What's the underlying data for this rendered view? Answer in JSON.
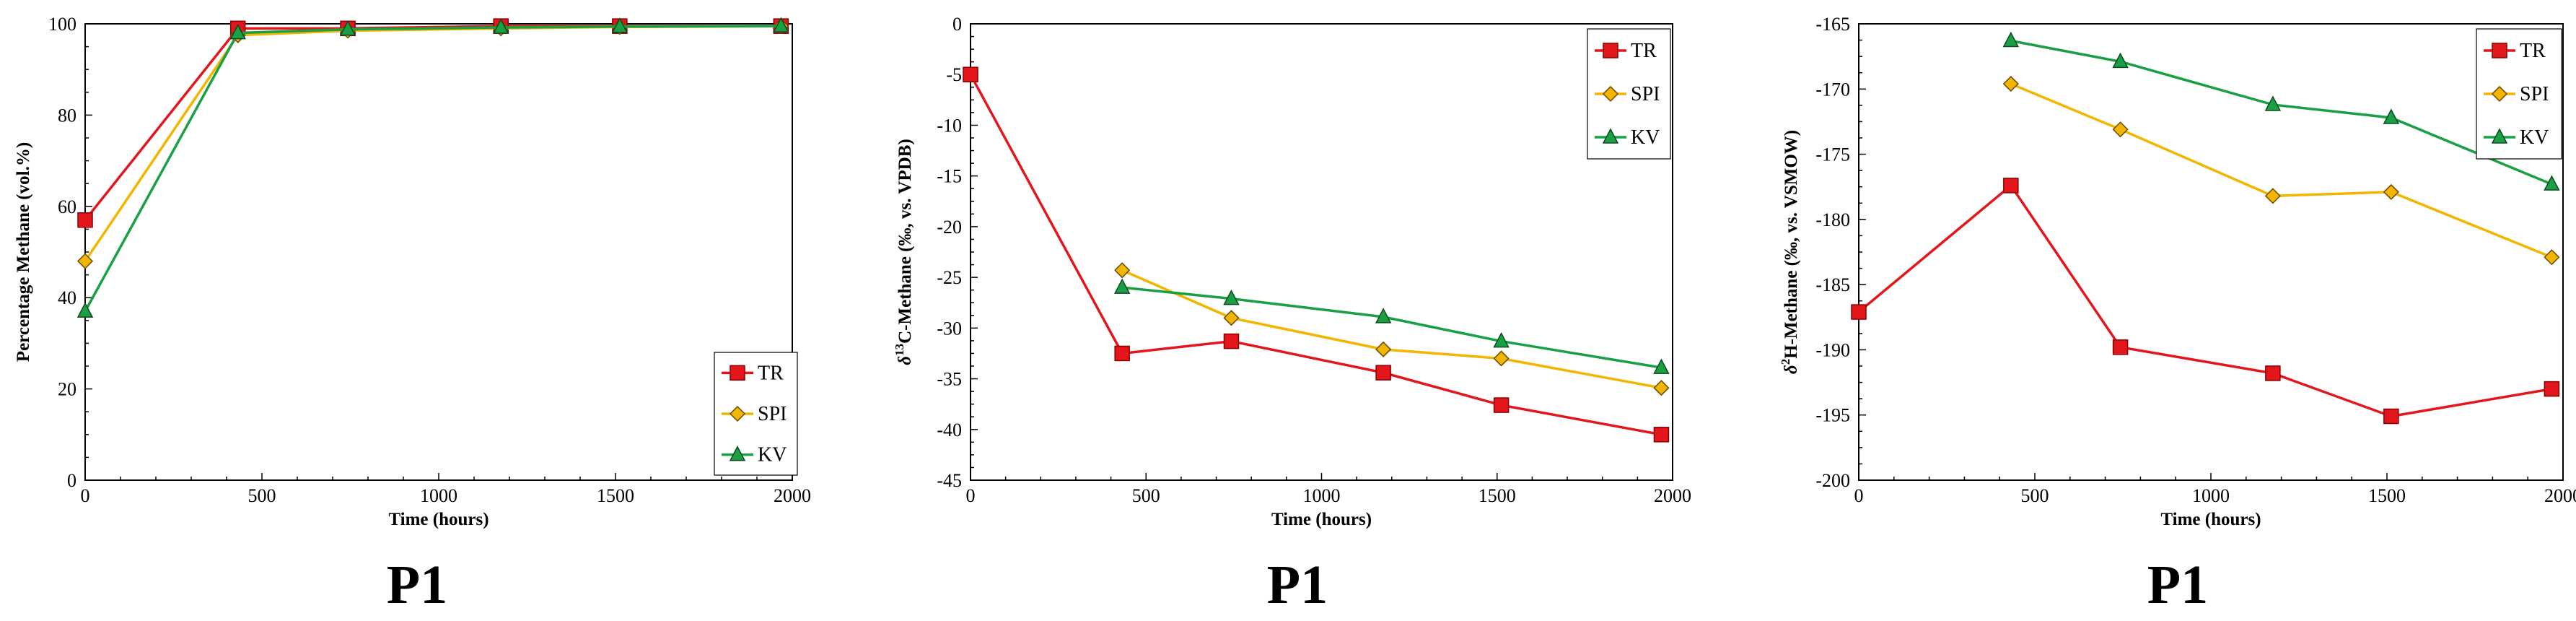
{
  "colors": {
    "TR": "#e3161b",
    "SPI": "#f2b500",
    "KV": "#1aa044"
  },
  "chart_data": [
    {
      "type": "line",
      "title": "P1",
      "xlabel": "Time (hours)",
      "ylabel": "Percentage Methane (vol.%)",
      "xlim": [
        0,
        2000
      ],
      "ylim": [
        0,
        100
      ],
      "xticks": [
        0,
        500,
        1000,
        1500,
        2000
      ],
      "yticks": [
        0,
        20,
        40,
        60,
        80,
        100
      ],
      "legend": "bottom-right",
      "series": [
        {
          "name": "TR",
          "marker": "square",
          "x": [
            0,
            432,
            743,
            1176,
            1512,
            1968
          ],
          "y": [
            57,
            99,
            99,
            99.5,
            99.5,
            99.5
          ]
        },
        {
          "name": "SPI",
          "marker": "diamond",
          "x": [
            0,
            432,
            743,
            1176,
            1512,
            1968
          ],
          "y": [
            48,
            97.5,
            98.5,
            99,
            99.3,
            99.5
          ]
        },
        {
          "name": "KV",
          "marker": "triangle",
          "x": [
            0,
            432,
            743,
            1176,
            1512,
            1968
          ],
          "y": [
            37,
            98,
            98.8,
            99.2,
            99.4,
            99.5
          ]
        }
      ]
    },
    {
      "type": "line",
      "title": "P1",
      "xlabel": "Time (hours)",
      "ylabel": "δ13C-Methane (‰, vs. VPDB)",
      "ylabel_parts": [
        "δ",
        "13",
        "C-Methane (‰, vs. VPDB)"
      ],
      "xlim": [
        0,
        2000
      ],
      "ylim": [
        -45,
        0
      ],
      "xticks": [
        0,
        500,
        1000,
        1500,
        2000
      ],
      "yticks": [
        0,
        -5,
        -10,
        -15,
        -20,
        -25,
        -30,
        -35,
        -40,
        -45
      ],
      "legend": "top-right",
      "series": [
        {
          "name": "TR",
          "marker": "square",
          "x": [
            0,
            432,
            743,
            1176,
            1512,
            1968
          ],
          "y": [
            -5.0,
            -32.5,
            -31.3,
            -34.4,
            -37.6,
            -40.5
          ]
        },
        {
          "name": "SPI",
          "marker": "diamond",
          "x": [
            432,
            743,
            1176,
            1512,
            1968
          ],
          "y": [
            -24.3,
            -29.0,
            -32.1,
            -33.0,
            -35.9
          ]
        },
        {
          "name": "KV",
          "marker": "triangle",
          "x": [
            432,
            743,
            1176,
            1512,
            1968
          ],
          "y": [
            -26.0,
            -27.1,
            -28.9,
            -31.3,
            -33.9
          ]
        }
      ]
    },
    {
      "type": "line",
      "title": "P1",
      "xlabel": "Time (hours)",
      "ylabel": "δ2H-Methane (‰, vs. VSMOW)",
      "ylabel_parts": [
        "δ",
        "2",
        "H-Methane (‰, vs. VSMOW)"
      ],
      "xlim": [
        0,
        2000
      ],
      "ylim": [
        -200,
        -165
      ],
      "xticks": [
        0,
        500,
        1000,
        1500,
        2000
      ],
      "yticks": [
        -165,
        -170,
        -175,
        -180,
        -185,
        -190,
        -195,
        -200
      ],
      "legend": "top-right",
      "series": [
        {
          "name": "TR",
          "marker": "square",
          "x": [
            0,
            432,
            743,
            1176,
            1512,
            1968
          ],
          "y": [
            -187.1,
            -177.4,
            -189.8,
            -191.8,
            -195.1,
            -193.0
          ]
        },
        {
          "name": "SPI",
          "marker": "diamond",
          "x": [
            432,
            743,
            1176,
            1512,
            1968
          ],
          "y": [
            -169.6,
            -173.1,
            -178.2,
            -177.9,
            -182.9
          ]
        },
        {
          "name": "KV",
          "marker": "triangle",
          "x": [
            432,
            743,
            1176,
            1512,
            1968
          ],
          "y": [
            -166.3,
            -167.9,
            -171.2,
            -172.2,
            -177.3
          ]
        }
      ]
    }
  ]
}
